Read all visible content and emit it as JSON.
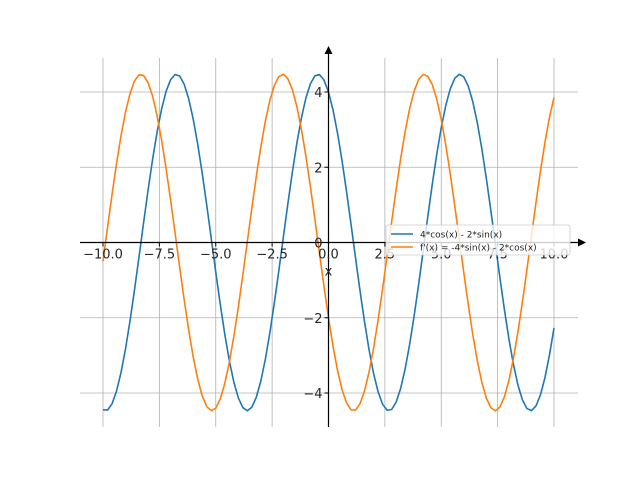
{
  "chart_data": {
    "type": "line",
    "title": "",
    "xlabel": "x",
    "ylabel": "",
    "xlim": [
      -10,
      10
    ],
    "ylim": [
      -4.8,
      5
    ],
    "grid": true,
    "legend_position": "right",
    "x_ticks": [
      "−10.0",
      "−7.5",
      "−5.0",
      "−2.5",
      "0.0",
      "2.5",
      "5.0",
      "7.5",
      "10.0"
    ],
    "x_tick_values": [
      -10,
      -7.5,
      -5,
      -2.5,
      0,
      2.5,
      5,
      7.5,
      10
    ],
    "y_ticks": [
      "−4",
      "−2",
      "0",
      "2",
      "4"
    ],
    "y_tick_values": [
      -4,
      -2,
      0,
      2,
      4
    ],
    "x_range": [
      -10,
      10
    ],
    "sample_count": 101,
    "series": [
      {
        "name": "4*cos(x) - 2*sin(x)",
        "expression": "4*cos(x) - 2*sin(x)",
        "color": "#1f77b4"
      },
      {
        "name": "f'(x) = -4*sin(x) - 2*cos(x)",
        "expression": "-4*sin(x) - 2*cos(x)",
        "color": "#ff7f0e"
      }
    ]
  }
}
